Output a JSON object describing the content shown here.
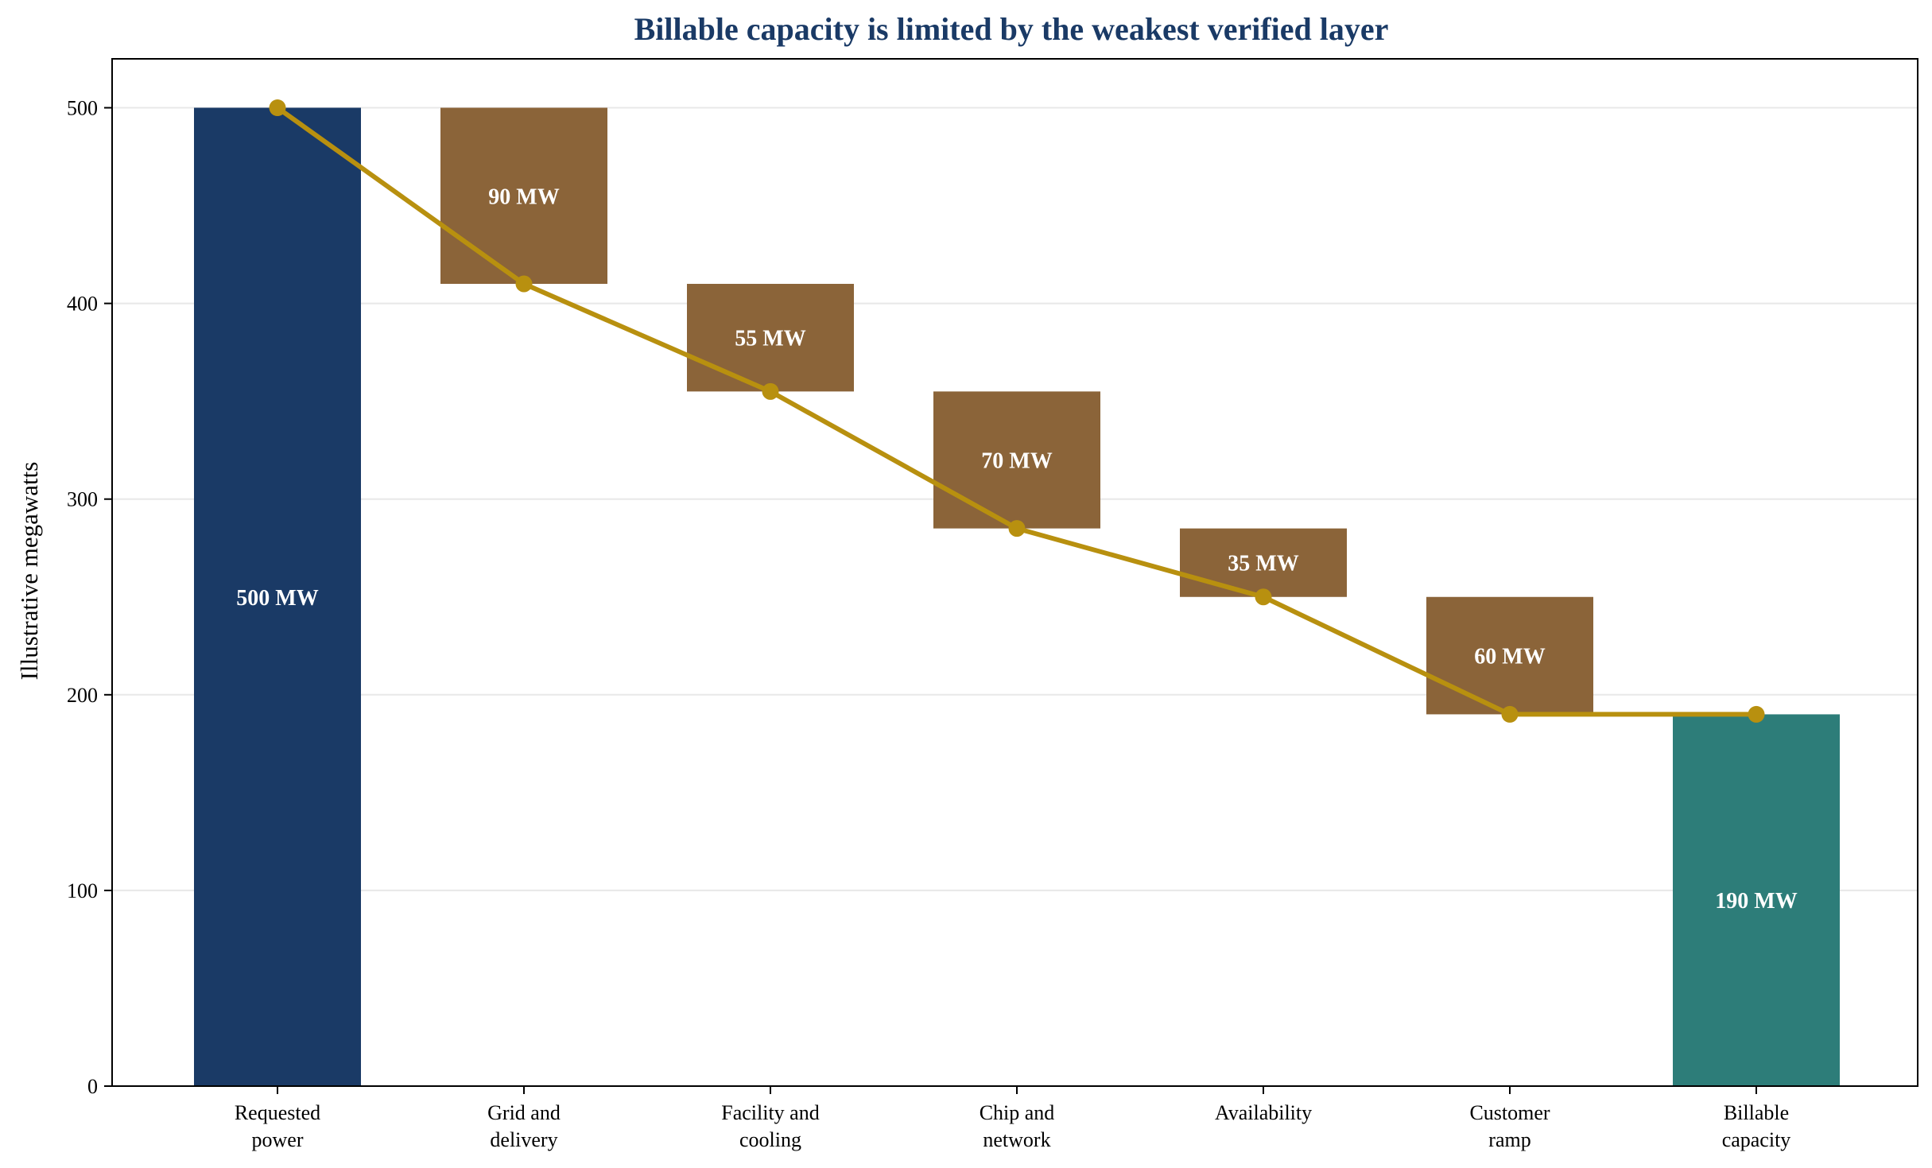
{
  "chart_data": {
    "type": "waterfall",
    "title": "Billable capacity is limited by the weakest verified layer",
    "ylabel": "Illustrative megawatts",
    "xlabel": "",
    "ylim": [
      0,
      525
    ],
    "yticks": [
      0,
      100,
      200,
      300,
      400,
      500
    ],
    "grid": "horizontal",
    "categories": [
      [
        "Requested",
        "power"
      ],
      [
        "Grid and",
        "delivery"
      ],
      [
        "Facility and",
        "cooling"
      ],
      [
        "Chip and",
        "network"
      ],
      [
        "Availability"
      ],
      [
        "Customer",
        "ramp"
      ],
      [
        "Billable",
        "capacity"
      ]
    ],
    "bars": [
      {
        "kind": "total",
        "start": 0,
        "end": 500,
        "label": "500 MW"
      },
      {
        "kind": "loss",
        "start": 500,
        "end": 410,
        "label": "90 MW"
      },
      {
        "kind": "loss",
        "start": 410,
        "end": 355,
        "label": "55 MW"
      },
      {
        "kind": "loss",
        "start": 355,
        "end": 285,
        "label": "70 MW"
      },
      {
        "kind": "loss",
        "start": 285,
        "end": 250,
        "label": "35 MW"
      },
      {
        "kind": "loss",
        "start": 250,
        "end": 190,
        "label": "60 MW"
      },
      {
        "kind": "result",
        "start": 0,
        "end": 190,
        "label": "190 MW"
      }
    ],
    "line_values": [
      500,
      410,
      355,
      285,
      250,
      190,
      190
    ],
    "colors": {
      "total": "#1a3a66",
      "loss": "#8b6439",
      "result": "#2d7d79",
      "line": "#b8900f",
      "title": "#1a3a66",
      "grid": "#e8e8e8",
      "axis": "#000000"
    }
  }
}
